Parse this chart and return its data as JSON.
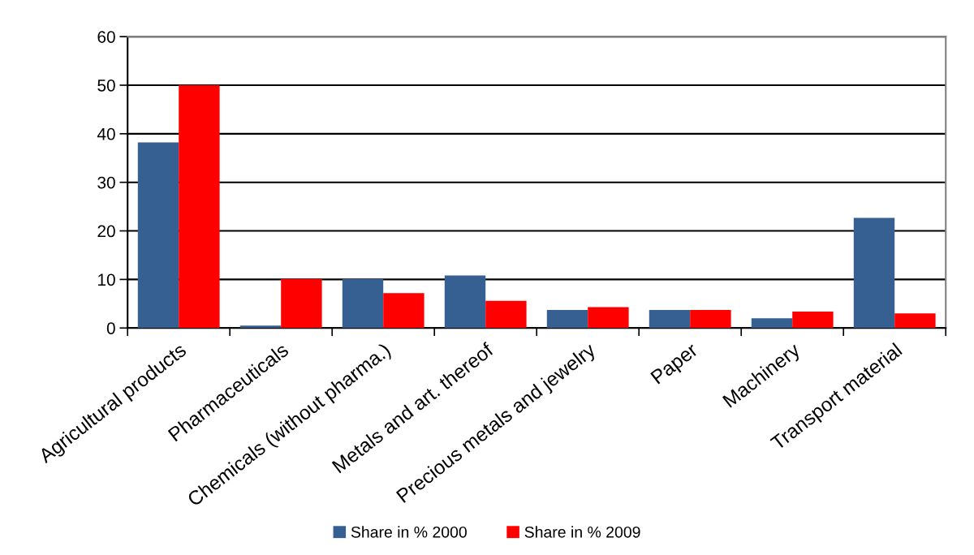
{
  "chart_data": {
    "type": "bar",
    "categories": [
      "Agricultural products",
      "Pharmaceuticals",
      "Chemicals (without pharma.)",
      "Metals and art. thereof",
      "Precious metals and jewelry",
      "Paper",
      "Machinery",
      "Transport material"
    ],
    "series": [
      {
        "name": "Share in % 2000",
        "color": "#376092",
        "values": [
          38.2,
          0.5,
          10.1,
          10.8,
          3.7,
          3.7,
          2.0,
          22.7
        ]
      },
      {
        "name": "Share in % 2009",
        "color": "#ff0000",
        "values": [
          50,
          10.1,
          7.2,
          5.6,
          4.3,
          3.7,
          3.4,
          3.0
        ]
      }
    ],
    "ylim": [
      0,
      60
    ],
    "yticks": [
      0,
      10,
      20,
      30,
      40,
      50,
      60
    ],
    "grid": "y",
    "legend": "bottom"
  }
}
